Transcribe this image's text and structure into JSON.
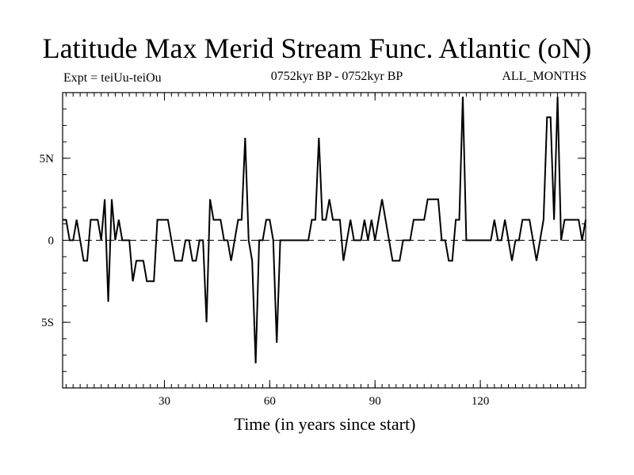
{
  "chart_data": {
    "type": "line",
    "title": "Latitude Max Merid Stream Func. Atlantic (oN)",
    "subtitle_left": "Expt = teiUu-teiOu",
    "subtitle_center": "0752kyr BP - 0752kyr BP",
    "subtitle_right": "ALL_MONTHS",
    "xlabel": "Time (in years since start)",
    "ylabel": "",
    "xlim": [
      1,
      150
    ],
    "ylim": [
      -9,
      9
    ],
    "xticks": [
      30,
      60,
      90,
      120
    ],
    "xtick_labels": [
      "30",
      "60",
      "90",
      "120"
    ],
    "yticks": [
      -5,
      0,
      5
    ],
    "ytick_labels": [
      "5S",
      "0",
      "5N"
    ],
    "reference_line": 0,
    "series": [
      {
        "name": "Latitude Max Merid Stream Func.",
        "x": [
          1,
          2,
          3,
          4,
          5,
          6,
          7,
          8,
          9,
          10,
          11,
          12,
          13,
          14,
          15,
          16,
          17,
          18,
          19,
          20,
          21,
          22,
          23,
          24,
          25,
          26,
          27,
          28,
          29,
          30,
          31,
          32,
          33,
          34,
          35,
          36,
          37,
          38,
          39,
          40,
          41,
          42,
          43,
          44,
          45,
          46,
          47,
          48,
          49,
          50,
          51,
          52,
          53,
          54,
          55,
          56,
          57,
          58,
          59,
          60,
          61,
          62,
          63,
          64,
          65,
          66,
          67,
          68,
          69,
          70,
          71,
          72,
          73,
          74,
          75,
          76,
          77,
          78,
          79,
          80,
          81,
          82,
          83,
          84,
          85,
          86,
          87,
          88,
          89,
          90,
          91,
          92,
          93,
          94,
          95,
          96,
          97,
          98,
          99,
          100,
          101,
          102,
          103,
          104,
          105,
          106,
          107,
          108,
          109,
          110,
          111,
          112,
          113,
          114,
          115,
          116,
          117,
          118,
          119,
          120,
          121,
          122,
          123,
          124,
          125,
          126,
          127,
          128,
          129,
          130,
          131,
          132,
          133,
          134,
          135,
          136,
          137,
          138,
          139,
          140,
          141,
          142,
          143,
          144,
          145,
          146,
          147,
          148,
          149,
          150
        ],
        "values": [
          1.25,
          1.25,
          0,
          0,
          1.25,
          0,
          -1.25,
          -1.25,
          1.25,
          1.25,
          1.25,
          0,
          2.5,
          -3.75,
          2.5,
          0,
          1.25,
          0,
          0,
          0,
          -2.5,
          -1.25,
          -1.25,
          -1.25,
          -2.5,
          -2.5,
          -2.5,
          1.25,
          1.25,
          1.25,
          1.25,
          0,
          -1.25,
          -1.25,
          -1.25,
          0,
          0,
          -1.25,
          -1.25,
          0,
          0,
          -5,
          2.5,
          1.25,
          1.25,
          1.25,
          0,
          0,
          -1.25,
          0,
          1.25,
          1.25,
          6.25,
          0,
          -1.25,
          -7.5,
          0,
          0,
          1.25,
          1.25,
          0,
          -6.25,
          0,
          0,
          0,
          0,
          0,
          0,
          0,
          0,
          0,
          1.25,
          1.25,
          6.25,
          1.25,
          1.25,
          2.5,
          1.25,
          1.25,
          1.25,
          -1.25,
          0,
          1.25,
          0,
          0,
          0,
          1.25,
          0,
          1.25,
          0,
          1.25,
          2.5,
          1.25,
          0,
          -1.25,
          -1.25,
          -1.25,
          0,
          0,
          0,
          1.25,
          1.25,
          1.25,
          1.25,
          2.5,
          2.5,
          2.5,
          2.5,
          0,
          0,
          -1.25,
          -1.25,
          1.25,
          1.25,
          8.75,
          0,
          0,
          0,
          0,
          0,
          0,
          0,
          0,
          1.25,
          0,
          0,
          1.25,
          0,
          -1.25,
          0,
          0,
          1.25,
          1.25,
          1.25,
          0,
          -1.25,
          0,
          1.25,
          7.5,
          7.5,
          1.25,
          8.75,
          0,
          1.25,
          1.25,
          1.25,
          1.25,
          1.25,
          0,
          1.25
        ]
      }
    ]
  }
}
